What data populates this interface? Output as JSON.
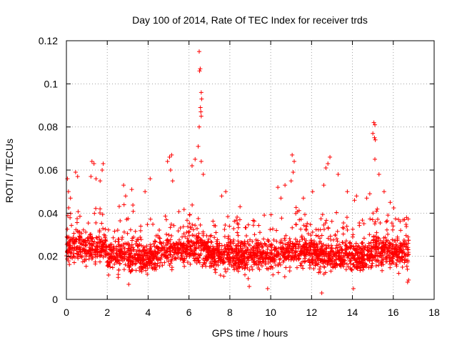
{
  "chart_data": {
    "type": "scatter",
    "title": "Day 100 of 2014, Rate Of TEC Index for receiver trds",
    "xlabel": "GPS time / hours",
    "ylabel": "ROTI / TECUs",
    "xlim": [
      0,
      18
    ],
    "ylim": [
      0,
      0.12
    ],
    "xticks": [
      0,
      2,
      4,
      6,
      8,
      10,
      12,
      14,
      16,
      18
    ],
    "yticks": [
      0,
      0.02,
      0.04,
      0.06,
      0.08,
      0.1,
      0.12
    ],
    "xtick_labels": [
      "0",
      "2",
      "4",
      "6",
      "8",
      "10",
      "12",
      "14",
      "16",
      "18"
    ],
    "ytick_labels": [
      "0",
      "0.02",
      "0.04",
      "0.06",
      "0.08",
      "0.1",
      "0.12"
    ],
    "grid": true,
    "marker": "+",
    "color": "#ff0000",
    "series": [
      {
        "name": "trds",
        "x_range": [
          0,
          16.75
        ],
        "typical_range": [
          0.008,
          0.035
        ],
        "points": [
          [
            6.5,
            0.115
          ],
          [
            6.55,
            0.107
          ],
          [
            6.52,
            0.106
          ],
          [
            6.6,
            0.096
          ],
          [
            6.62,
            0.093
          ],
          [
            6.56,
            0.089
          ],
          [
            6.58,
            0.087
          ],
          [
            6.6,
            0.085
          ],
          [
            6.5,
            0.08
          ],
          [
            6.45,
            0.071
          ],
          [
            6.3,
            0.065
          ],
          [
            6.15,
            0.062
          ],
          [
            6.6,
            0.064
          ],
          [
            6.7,
            0.058
          ],
          [
            15.05,
            0.082
          ],
          [
            15.1,
            0.081
          ],
          [
            15.0,
            0.077
          ],
          [
            15.08,
            0.075
          ],
          [
            15.12,
            0.074
          ],
          [
            15.1,
            0.065
          ],
          [
            15.3,
            0.058
          ],
          [
            15.55,
            0.05
          ],
          [
            15.85,
            0.045
          ],
          [
            5.05,
            0.066
          ],
          [
            5.15,
            0.067
          ],
          [
            4.95,
            0.064
          ],
          [
            5.1,
            0.06
          ],
          [
            5.2,
            0.055
          ],
          [
            1.25,
            0.064
          ],
          [
            1.35,
            0.063
          ],
          [
            1.2,
            0.057
          ],
          [
            1.45,
            0.056
          ],
          [
            1.8,
            0.063
          ],
          [
            1.75,
            0.06
          ],
          [
            1.65,
            0.055
          ],
          [
            11.05,
            0.067
          ],
          [
            11.15,
            0.064
          ],
          [
            11.1,
            0.059
          ],
          [
            11.0,
            0.055
          ],
          [
            12.9,
            0.066
          ],
          [
            12.8,
            0.063
          ],
          [
            12.7,
            0.061
          ],
          [
            13.3,
            0.058
          ],
          [
            12.6,
            0.053
          ],
          [
            0.05,
            0.056
          ],
          [
            0.1,
            0.05
          ],
          [
            0.45,
            0.059
          ],
          [
            0.55,
            0.057
          ],
          [
            0.2,
            0.047
          ],
          [
            4.1,
            0.056
          ],
          [
            3.85,
            0.05
          ],
          [
            2.8,
            0.053
          ],
          [
            3.2,
            0.051
          ],
          [
            2.9,
            0.048
          ],
          [
            7.8,
            0.05
          ],
          [
            7.6,
            0.048
          ],
          [
            8.5,
            0.043
          ],
          [
            10.35,
            0.052
          ],
          [
            10.7,
            0.053
          ],
          [
            10.5,
            0.047
          ],
          [
            12.05,
            0.05
          ],
          [
            11.6,
            0.047
          ],
          [
            13.75,
            0.05
          ],
          [
            14.1,
            0.046
          ],
          [
            14.2,
            0.048
          ],
          [
            14.85,
            0.049
          ],
          [
            14.7,
            0.047
          ],
          [
            16.65,
            0.038
          ],
          [
            16.55,
            0.037
          ],
          [
            12.5,
            0.003
          ],
          [
            14.05,
            0.005
          ],
          [
            9.85,
            0.005
          ],
          [
            8.95,
            0.006
          ],
          [
            3.05,
            0.007
          ],
          [
            16.7,
            0.008
          ],
          [
            16.75,
            0.009
          ]
        ]
      }
    ]
  }
}
